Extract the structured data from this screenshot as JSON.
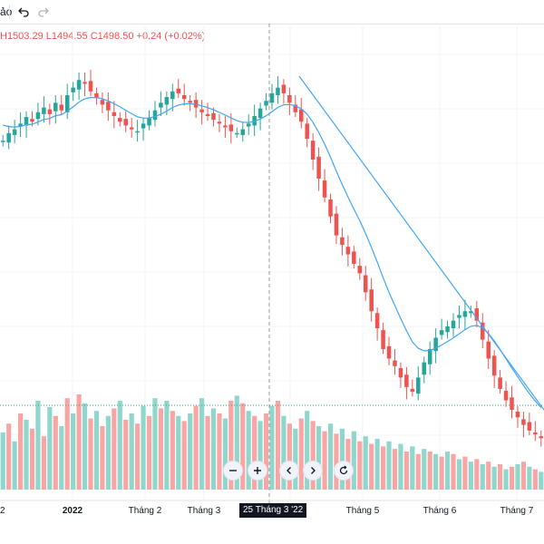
{
  "toolbar": {
    "partial_text": "ảo",
    "undo_icon": "undo-icon",
    "redo_icon": "redo-icon"
  },
  "legend": {
    "high": "H1503.29",
    "low": "L1494.55",
    "close": "C1498.50",
    "change": "+0.24 (+0.02%)"
  },
  "crosshair": {
    "date_label": "25 Tháng 3 '22"
  },
  "nav": {
    "zoom_out_icon": "minus-icon",
    "zoom_in_icon": "plus-icon",
    "scroll_left_icon": "chevron-left-icon",
    "scroll_right_icon": "chevron-right-icon",
    "reset_icon": "reset-icon"
  },
  "colors": {
    "up": "#26a69a",
    "down": "#ef5350",
    "ma_line": "#42a5f5",
    "trend_line": "#42a5f5",
    "volume_up": "#8fd6cc",
    "volume_down": "#f8a5a3",
    "grid": "#f0f3fa"
  },
  "chart_data": {
    "type": "candlestick",
    "x_ticks": [
      {
        "label": "2",
        "x": 0
      },
      {
        "label": "2022",
        "x": 1,
        "bold": true
      },
      {
        "label": "Tháng 2",
        "x": 2
      },
      {
        "label": "Tháng 3",
        "x": 3
      },
      {
        "label": "Tháng 5",
        "x": 5
      },
      {
        "label": "Tháng 6",
        "x": 6
      },
      {
        "label": "Tháng 7",
        "x": 7
      }
    ],
    "price_path": [
      1460,
      1468,
      1472,
      1478,
      1485,
      1480,
      1490,
      1495,
      1488,
      1500,
      1492,
      1508,
      1516,
      1524,
      1520,
      1512,
      1505,
      1498,
      1492,
      1486,
      1480,
      1476,
      1472,
      1470,
      1478,
      1484,
      1492,
      1500,
      1506,
      1512,
      1510,
      1504,
      1500,
      1495,
      1490,
      1486,
      1482,
      1478,
      1474,
      1470,
      1468,
      1472,
      1478,
      1486,
      1494,
      1502,
      1510,
      1516,
      1510,
      1500,
      1490,
      1480,
      1462,
      1440,
      1420,
      1400,
      1380,
      1360,
      1350,
      1340,
      1330,
      1320,
      1300,
      1280,
      1262,
      1240,
      1230,
      1222,
      1210,
      1200,
      1195,
      1210,
      1226,
      1240,
      1252,
      1260,
      1264,
      1270,
      1276,
      1280,
      1280,
      1270,
      1250,
      1230,
      1212,
      1198,
      1186,
      1176,
      1168,
      1160,
      1154,
      1150,
      1146
    ],
    "ma_start": 1480,
    "volumes": [
      45,
      52,
      38,
      60,
      55,
      48,
      70,
      42,
      65,
      58,
      50,
      72,
      60,
      75,
      68,
      56,
      62,
      50,
      58,
      64,
      70,
      55,
      60,
      52,
      66,
      58,
      72,
      64,
      70,
      62,
      58,
      54,
      60,
      66,
      72,
      58,
      64,
      60,
      56,
      70,
      74,
      68,
      62,
      58,
      54,
      60,
      66,
      70,
      58,
      52,
      48,
      56,
      62,
      54,
      50,
      46,
      52,
      44,
      48,
      40,
      46,
      38,
      42,
      36,
      40,
      34,
      38,
      32,
      36,
      30,
      34,
      28,
      32,
      30,
      28,
      26,
      30,
      28,
      24,
      26,
      22,
      24,
      20,
      22,
      18,
      20,
      16,
      18,
      20,
      22,
      18,
      16,
      14
    ]
  }
}
